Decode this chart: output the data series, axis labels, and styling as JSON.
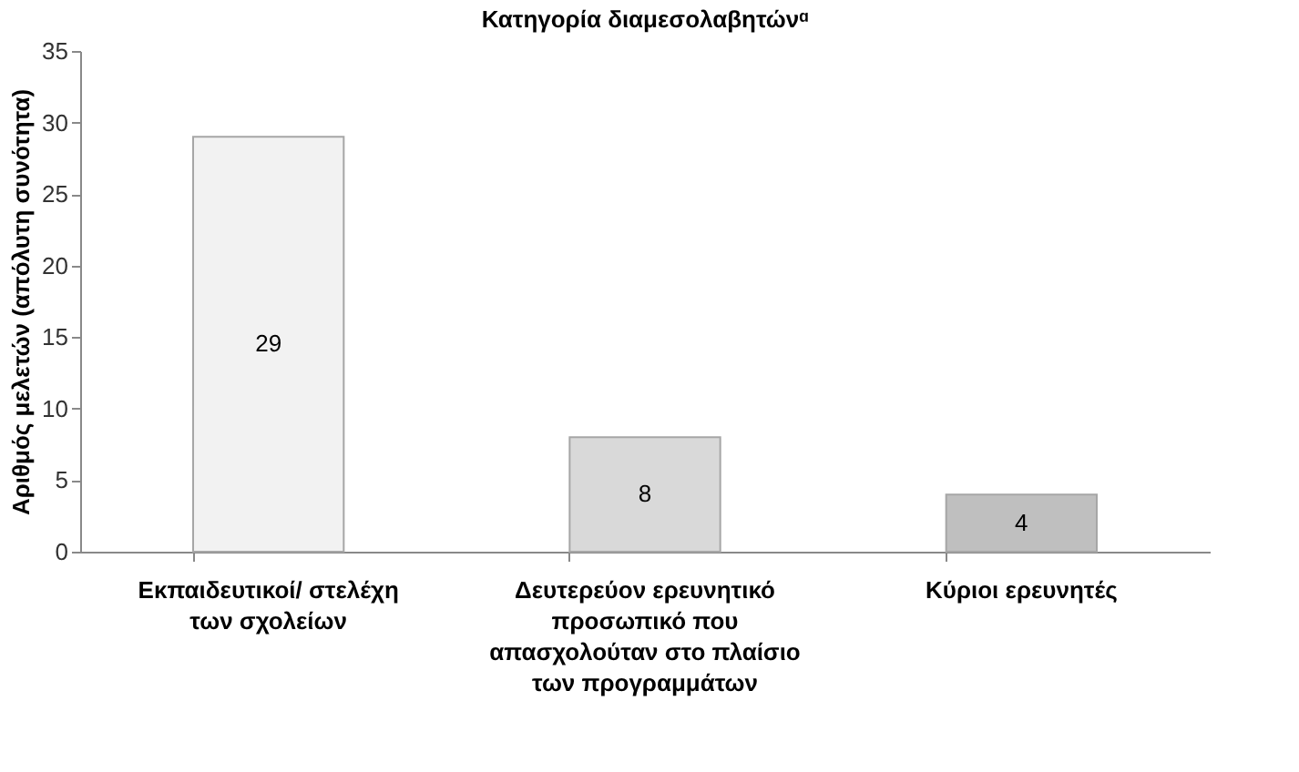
{
  "chart_data": {
    "type": "bar",
    "title": "Κατηγορία διαμεσολαβητώνᵅ",
    "ylabel": "Αριθμός μελετών (απόλυτη συνότητα)",
    "categories": [
      "Εκπαιδευτικοί/ στελέχη των σχολείων",
      "Δευτερεύον ερευνητικό προσωπικό που απασχολούταν στο πλαίσιο των προγραμμάτων",
      "Κύριοι ερευνητές"
    ],
    "values": [
      29,
      8,
      4
    ],
    "colors": [
      "#f2f2f2",
      "#d9d9d9",
      "#bfbfbf"
    ],
    "ylim": [
      0,
      35
    ],
    "yticks": [
      0,
      5,
      10,
      15,
      20,
      25,
      30,
      35
    ],
    "data_labels": true,
    "grid": false
  }
}
